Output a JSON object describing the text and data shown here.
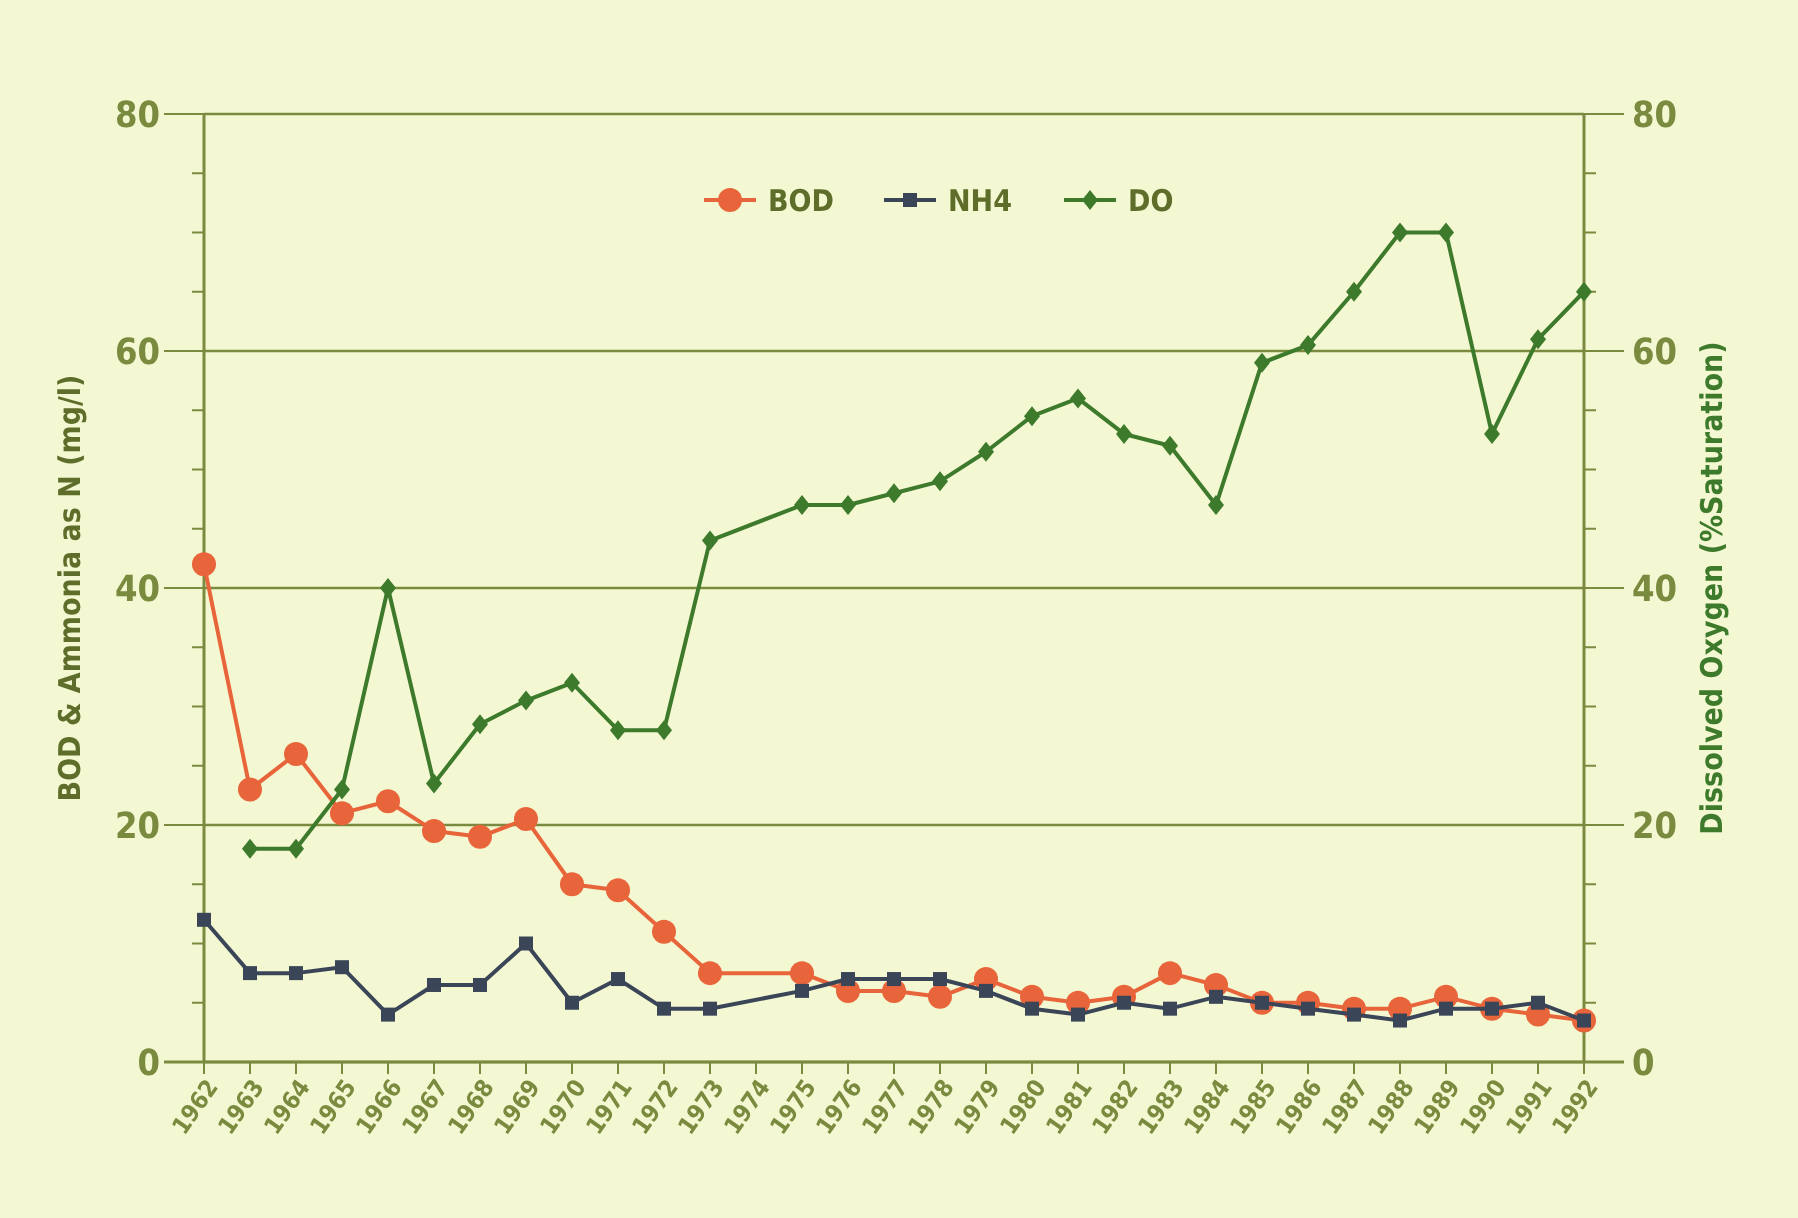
{
  "chart_data": {
    "type": "line",
    "ylabel": "BOD & Ammonia as N (mg/l)",
    "y2label": "Dissolved Oxygen (%Saturation)",
    "categories": [
      "1962",
      "1963",
      "1964",
      "1965",
      "1966",
      "1967",
      "1968",
      "1969",
      "1970",
      "1971",
      "1972",
      "1973",
      "1974",
      "1975",
      "1976",
      "1977",
      "1978",
      "1979",
      "1980",
      "1981",
      "1982",
      "1983",
      "1984",
      "1985",
      "1986",
      "1987",
      "1988",
      "1989",
      "1990",
      "1991",
      "1992"
    ],
    "series": [
      {
        "name": "BOD",
        "color": "#e8643a",
        "marker": "circle",
        "values": [
          42,
          23,
          26,
          21,
          22,
          19.5,
          19,
          20.5,
          15,
          14.5,
          11,
          7.5,
          null,
          7.5,
          6,
          6,
          5.5,
          7,
          5.5,
          5,
          5.5,
          7.5,
          6.5,
          5,
          5,
          4.5,
          4.5,
          5.5,
          4.5,
          4,
          3.5
        ]
      },
      {
        "name": "NH4",
        "color": "#3a4658",
        "marker": "square",
        "values": [
          12,
          7.5,
          7.5,
          8,
          4,
          6.5,
          6.5,
          10,
          5,
          7,
          4.5,
          4.5,
          null,
          6,
          7,
          7,
          7,
          6,
          4.5,
          4,
          5,
          4.5,
          5.5,
          5,
          4.5,
          4,
          3.5,
          4.5,
          4.5,
          5,
          3.5
        ]
      },
      {
        "name": "DO",
        "color": "#3d7a2c",
        "marker": "diamond",
        "axis": "y2",
        "values": [
          null,
          18,
          18,
          23,
          40,
          23.5,
          28.5,
          30.5,
          32,
          28,
          28,
          44,
          null,
          47,
          47,
          48,
          49,
          51.5,
          54.5,
          56,
          53,
          52,
          47,
          59,
          60.5,
          65,
          70,
          70,
          53,
          61,
          65
        ]
      }
    ],
    "ylim": [
      0,
      80
    ],
    "yticks": [
      0,
      {
        "value": 5,
        "label": null
      },
      {
        "value": 10,
        "label": null
      },
      {
        "value": 15,
        "label": null
      },
      20,
      {
        "value": 25,
        "label": null
      },
      {
        "value": 30,
        "label": null
      },
      {
        "value": 35,
        "label": null
      },
      40,
      {
        "value": 45,
        "label": null
      },
      {
        "value": 50,
        "label": null
      },
      {
        "value": 55,
        "label": null
      },
      60,
      {
        "value": 65,
        "label": null
      },
      {
        "value": 70,
        "label": null
      },
      {
        "value": 75,
        "label": null
      },
      80
    ],
    "y2lim": [
      0,
      80
    ],
    "y2ticks": [
      0,
      {
        "value": 5,
        "label": null
      },
      {
        "value": 10,
        "label": null
      },
      {
        "value": 15,
        "label": null
      },
      20,
      {
        "value": 25,
        "label": null
      },
      {
        "value": 30,
        "label": null
      },
      {
        "value": 35,
        "label": null
      },
      40,
      {
        "value": 45,
        "label": null
      },
      {
        "value": 50,
        "label": null
      },
      {
        "value": 55,
        "label": null
      },
      60,
      {
        "value": 65,
        "label": null
      },
      {
        "value": 70,
        "label": null
      },
      {
        "value": 75,
        "label": null
      },
      80
    ],
    "grid": "y",
    "legend": "top",
    "line_style": "solid"
  }
}
